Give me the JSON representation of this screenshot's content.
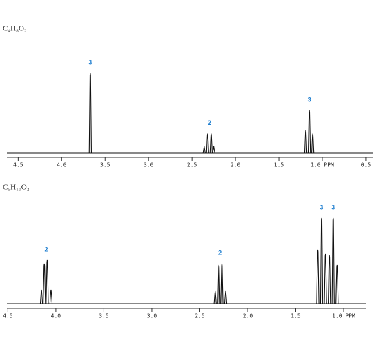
{
  "chart_data": [
    {
      "type": "spectrum",
      "title": "C₄H₈O₂",
      "x": [
        3.67,
        2.36,
        2.32,
        2.28,
        2.25,
        1.19,
        1.15,
        1.11
      ],
      "values": [
        114,
        10,
        28,
        28,
        10,
        33,
        61,
        28
      ],
      "color": "#111111",
      "xlim": [
        4.63,
        0.42
      ],
      "ylim": [
        0,
        120
      ],
      "xticks": [
        {
          "value": 4.5,
          "label": "4.5"
        },
        {
          "value": 4,
          "label": "4.0"
        },
        3.5,
        {
          "value": 3,
          "label": "3.0"
        },
        2.5,
        {
          "value": 2,
          "label": "2.0"
        },
        1.5,
        {
          "value": 1,
          "label": "1.0 PPM"
        },
        0.5
      ],
      "annotations": [
        {
          "text": "3",
          "x": 3.67
        },
        {
          "text": "2",
          "x": 2.3
        },
        {
          "text": "3",
          "x": 1.15
        }
      ],
      "annotation_color": "#1f7fd0"
    },
    {
      "type": "spectrum",
      "title": "C₅H₁₀O₂",
      "x": [
        4.15,
        4.12,
        4.09,
        4.05,
        2.34,
        2.3,
        2.27,
        2.23,
        1.27,
        1.23,
        1.19,
        1.15,
        1.11,
        1.07
      ],
      "values": [
        20,
        58,
        63,
        20,
        18,
        56,
        58,
        18,
        78,
        124,
        72,
        70,
        124,
        56
      ],
      "color": "#111111",
      "xlim": [
        4.51,
        0.77
      ],
      "ylim": [
        0,
        130
      ],
      "xticks": [
        4.5,
        {
          "value": 4,
          "label": "4.0"
        },
        3.5,
        {
          "value": 3,
          "label": "3.0"
        },
        2.5,
        {
          "value": 2,
          "label": "2.0"
        },
        1.5,
        {
          "value": 1,
          "label": "1.0 PPM"
        }
      ],
      "annotations": [
        {
          "text": "2",
          "x": 4.1
        },
        {
          "text": "2",
          "x": 2.29
        },
        {
          "text": "3",
          "x": 1.23
        },
        {
          "text": "3",
          "x": 1.11
        }
      ],
      "annotation_color": "#1f7fd0"
    }
  ]
}
